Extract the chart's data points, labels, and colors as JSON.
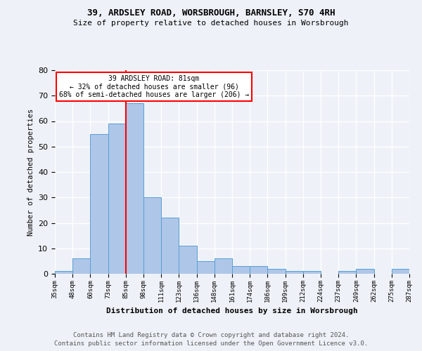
{
  "title1": "39, ARDSLEY ROAD, WORSBROUGH, BARNSLEY, S70 4RH",
  "title2": "Size of property relative to detached houses in Worsbrough",
  "xlabel": "Distribution of detached houses by size in Worsbrough",
  "ylabel": "Number of detached properties",
  "categories": [
    "35sqm",
    "48sqm",
    "60sqm",
    "73sqm",
    "85sqm",
    "98sqm",
    "111sqm",
    "123sqm",
    "136sqm",
    "148sqm",
    "161sqm",
    "174sqm",
    "186sqm",
    "199sqm",
    "212sqm",
    "224sqm",
    "237sqm",
    "249sqm",
    "262sqm",
    "275sqm",
    "287sqm"
  ],
  "values": [
    1,
    6,
    55,
    59,
    67,
    30,
    22,
    11,
    5,
    6,
    3,
    3,
    2,
    1,
    1,
    0,
    1,
    2,
    0,
    2
  ],
  "bar_color": "#aec6e8",
  "bar_edge_color": "#5a9fd4",
  "vline_x_index": 4,
  "vline_color": "red",
  "annotation_text": "39 ARDSLEY ROAD: 81sqm\n← 32% of detached houses are smaller (96)\n68% of semi-detached houses are larger (206) →",
  "annotation_box_color": "white",
  "annotation_box_edge_color": "red",
  "ylim": [
    0,
    80
  ],
  "yticks": [
    0,
    10,
    20,
    30,
    40,
    50,
    60,
    70,
    80
  ],
  "footer1": "Contains HM Land Registry data © Crown copyright and database right 2024.",
  "footer2": "Contains public sector information licensed under the Open Government Licence v3.0.",
  "background_color": "#eef2f8"
}
